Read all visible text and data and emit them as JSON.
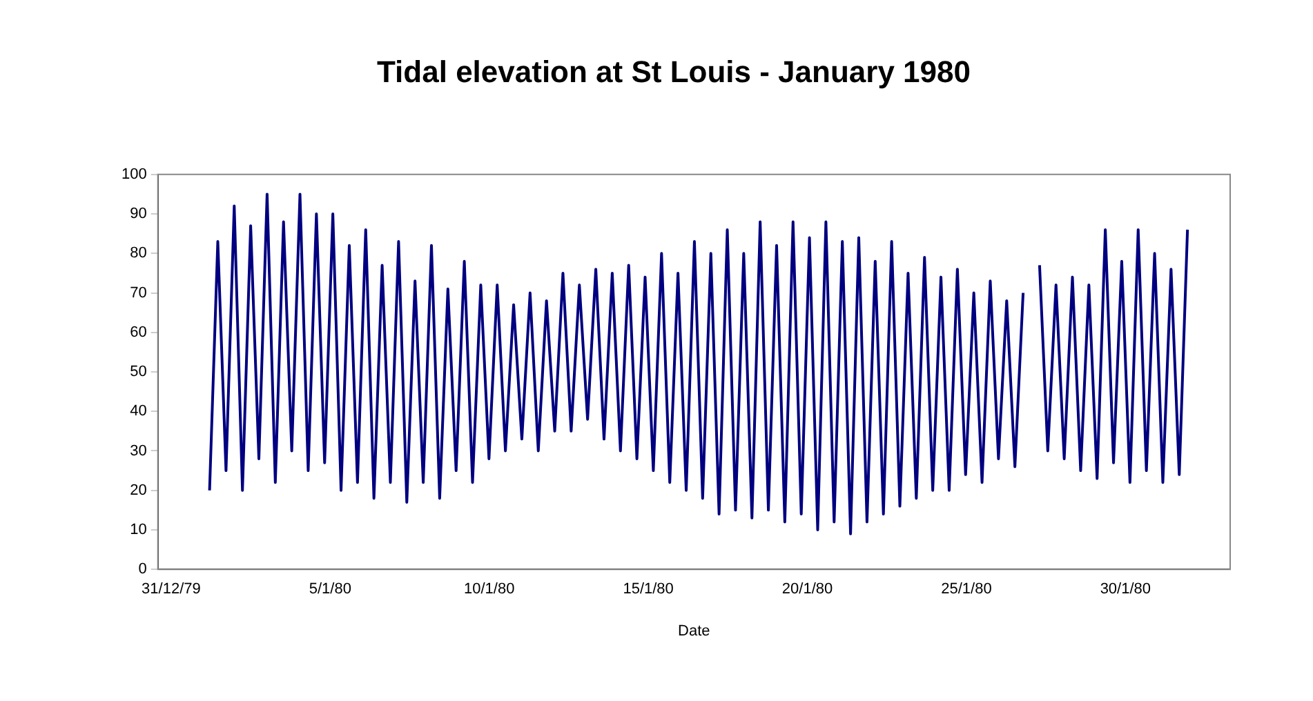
{
  "chart_data": {
    "type": "line",
    "title": "Tidal elevation at St Louis - January 1980",
    "xlabel": "Date",
    "xlim": [
      "1979-12-30T14:00",
      "1980-02-02T07:00"
    ],
    "xticks": [
      {
        "value": "1979-12-31",
        "label": "31/12/79"
      },
      {
        "value": "1980-01-05",
        "label": "5/1/80"
      },
      {
        "value": "1980-01-10",
        "label": "10/1/80"
      },
      {
        "value": "1980-01-15",
        "label": "15/1/80"
      },
      {
        "value": "1980-01-20",
        "label": "20/1/80"
      },
      {
        "value": "1980-01-25",
        "label": "25/1/80"
      },
      {
        "value": "1980-01-30",
        "label": "30/1/80"
      }
    ],
    "ylim": [
      0,
      100
    ],
    "yticks": [
      0,
      10,
      20,
      30,
      40,
      50,
      60,
      70,
      80,
      90,
      100
    ],
    "grid": false,
    "legend": false,
    "marker": "none",
    "line_style": "solid",
    "x": [
      "1980-01-01T05:00",
      "1980-01-01T11:12",
      "1980-01-01T17:24",
      "1980-01-01T23:36",
      "1980-01-02T05:48",
      "1980-01-02T12:00",
      "1980-01-02T18:12",
      "1980-01-03T00:24",
      "1980-01-03T06:36",
      "1980-01-03T12:48",
      "1980-01-03T19:00",
      "1980-01-04T01:12",
      "1980-01-04T07:24",
      "1980-01-04T13:36",
      "1980-01-04T19:48",
      "1980-01-05T02:00",
      "1980-01-05T08:12",
      "1980-01-05T14:24",
      "1980-01-05T20:36",
      "1980-01-06T02:48",
      "1980-01-06T09:00",
      "1980-01-06T15:12",
      "1980-01-06T21:24",
      "1980-01-07T03:36",
      "1980-01-07T09:48",
      "1980-01-07T16:00",
      "1980-01-07T22:12",
      "1980-01-08T04:24",
      "1980-01-08T10:36",
      "1980-01-08T16:48",
      "1980-01-08T23:00",
      "1980-01-09T05:12",
      "1980-01-09T11:24",
      "1980-01-09T17:36",
      "1980-01-09T23:48",
      "1980-01-10T06:00",
      "1980-01-10T12:12",
      "1980-01-10T18:24",
      "1980-01-11T00:36",
      "1980-01-11T06:48",
      "1980-01-11T13:00",
      "1980-01-11T19:12",
      "1980-01-12T01:24",
      "1980-01-12T07:36",
      "1980-01-12T13:48",
      "1980-01-12T20:00",
      "1980-01-13T02:12",
      "1980-01-13T08:24",
      "1980-01-13T14:36",
      "1980-01-13T20:48",
      "1980-01-14T03:00",
      "1980-01-14T09:12",
      "1980-01-14T15:24",
      "1980-01-14T21:36",
      "1980-01-15T03:48",
      "1980-01-15T10:00",
      "1980-01-15T16:12",
      "1980-01-15T22:24",
      "1980-01-16T04:36",
      "1980-01-16T10:48",
      "1980-01-16T17:00",
      "1980-01-16T23:12",
      "1980-01-17T05:24",
      "1980-01-17T11:36",
      "1980-01-17T17:48",
      "1980-01-18T00:00",
      "1980-01-18T06:12",
      "1980-01-18T12:24",
      "1980-01-18T18:36",
      "1980-01-19T00:48",
      "1980-01-19T07:00",
      "1980-01-19T13:12",
      "1980-01-19T19:24",
      "1980-01-20T01:36",
      "1980-01-20T07:48",
      "1980-01-20T14:00",
      "1980-01-20T20:12",
      "1980-01-21T02:24",
      "1980-01-21T08:36",
      "1980-01-21T14:48",
      "1980-01-21T21:00",
      "1980-01-22T03:12",
      "1980-01-22T09:24",
      "1980-01-22T15:36",
      "1980-01-22T21:48",
      "1980-01-23T04:00",
      "1980-01-23T10:12",
      "1980-01-23T16:24",
      "1980-01-23T22:36",
      "1980-01-24T04:48",
      "1980-01-24T11:00",
      "1980-01-24T17:12",
      "1980-01-24T23:24",
      "1980-01-25T05:36",
      "1980-01-25T11:48",
      "1980-01-25T18:00",
      "1980-01-26T00:12",
      "1980-01-26T06:24",
      "1980-01-26T12:36",
      "1980-01-26T18:48",
      "1980-01-27T01:00",
      "1980-01-27T07:12",
      "1980-01-27T13:24",
      "1980-01-27T19:36",
      "1980-01-28T01:48",
      "1980-01-28T08:00",
      "1980-01-28T14:12",
      "1980-01-28T20:24",
      "1980-01-29T02:36",
      "1980-01-29T08:48",
      "1980-01-29T15:00",
      "1980-01-29T21:12",
      "1980-01-30T03:24",
      "1980-01-30T09:36",
      "1980-01-30T15:48",
      "1980-01-30T22:00",
      "1980-01-31T04:12",
      "1980-01-31T10:24",
      "1980-01-31T16:36",
      "1980-01-31T22:48"
    ],
    "series": [
      {
        "color": "#000080",
        "values": [
          20,
          83,
          25,
          92,
          20,
          87,
          28,
          95,
          22,
          88,
          30,
          95,
          25,
          90,
          27,
          90,
          20,
          82,
          22,
          86,
          18,
          77,
          22,
          83,
          17,
          73,
          22,
          82,
          18,
          71,
          25,
          78,
          22,
          72,
          28,
          72,
          30,
          67,
          33,
          70,
          30,
          68,
          35,
          75,
          35,
          72,
          38,
          76,
          33,
          75,
          30,
          77,
          28,
          74,
          25,
          80,
          22,
          75,
          20,
          83,
          18,
          80,
          14,
          86,
          15,
          80,
          13,
          88,
          15,
          82,
          12,
          88,
          14,
          84,
          10,
          88,
          12,
          83,
          9,
          84,
          12,
          78,
          14,
          83,
          16,
          75,
          18,
          79,
          20,
          74,
          20,
          76,
          24,
          70,
          22,
          73,
          28,
          68,
          26,
          70,
          null,
          77,
          30,
          72,
          28,
          74,
          25,
          72,
          23,
          86,
          27,
          78,
          22,
          86,
          25,
          80,
          22,
          76,
          24,
          86
        ]
      }
    ]
  }
}
